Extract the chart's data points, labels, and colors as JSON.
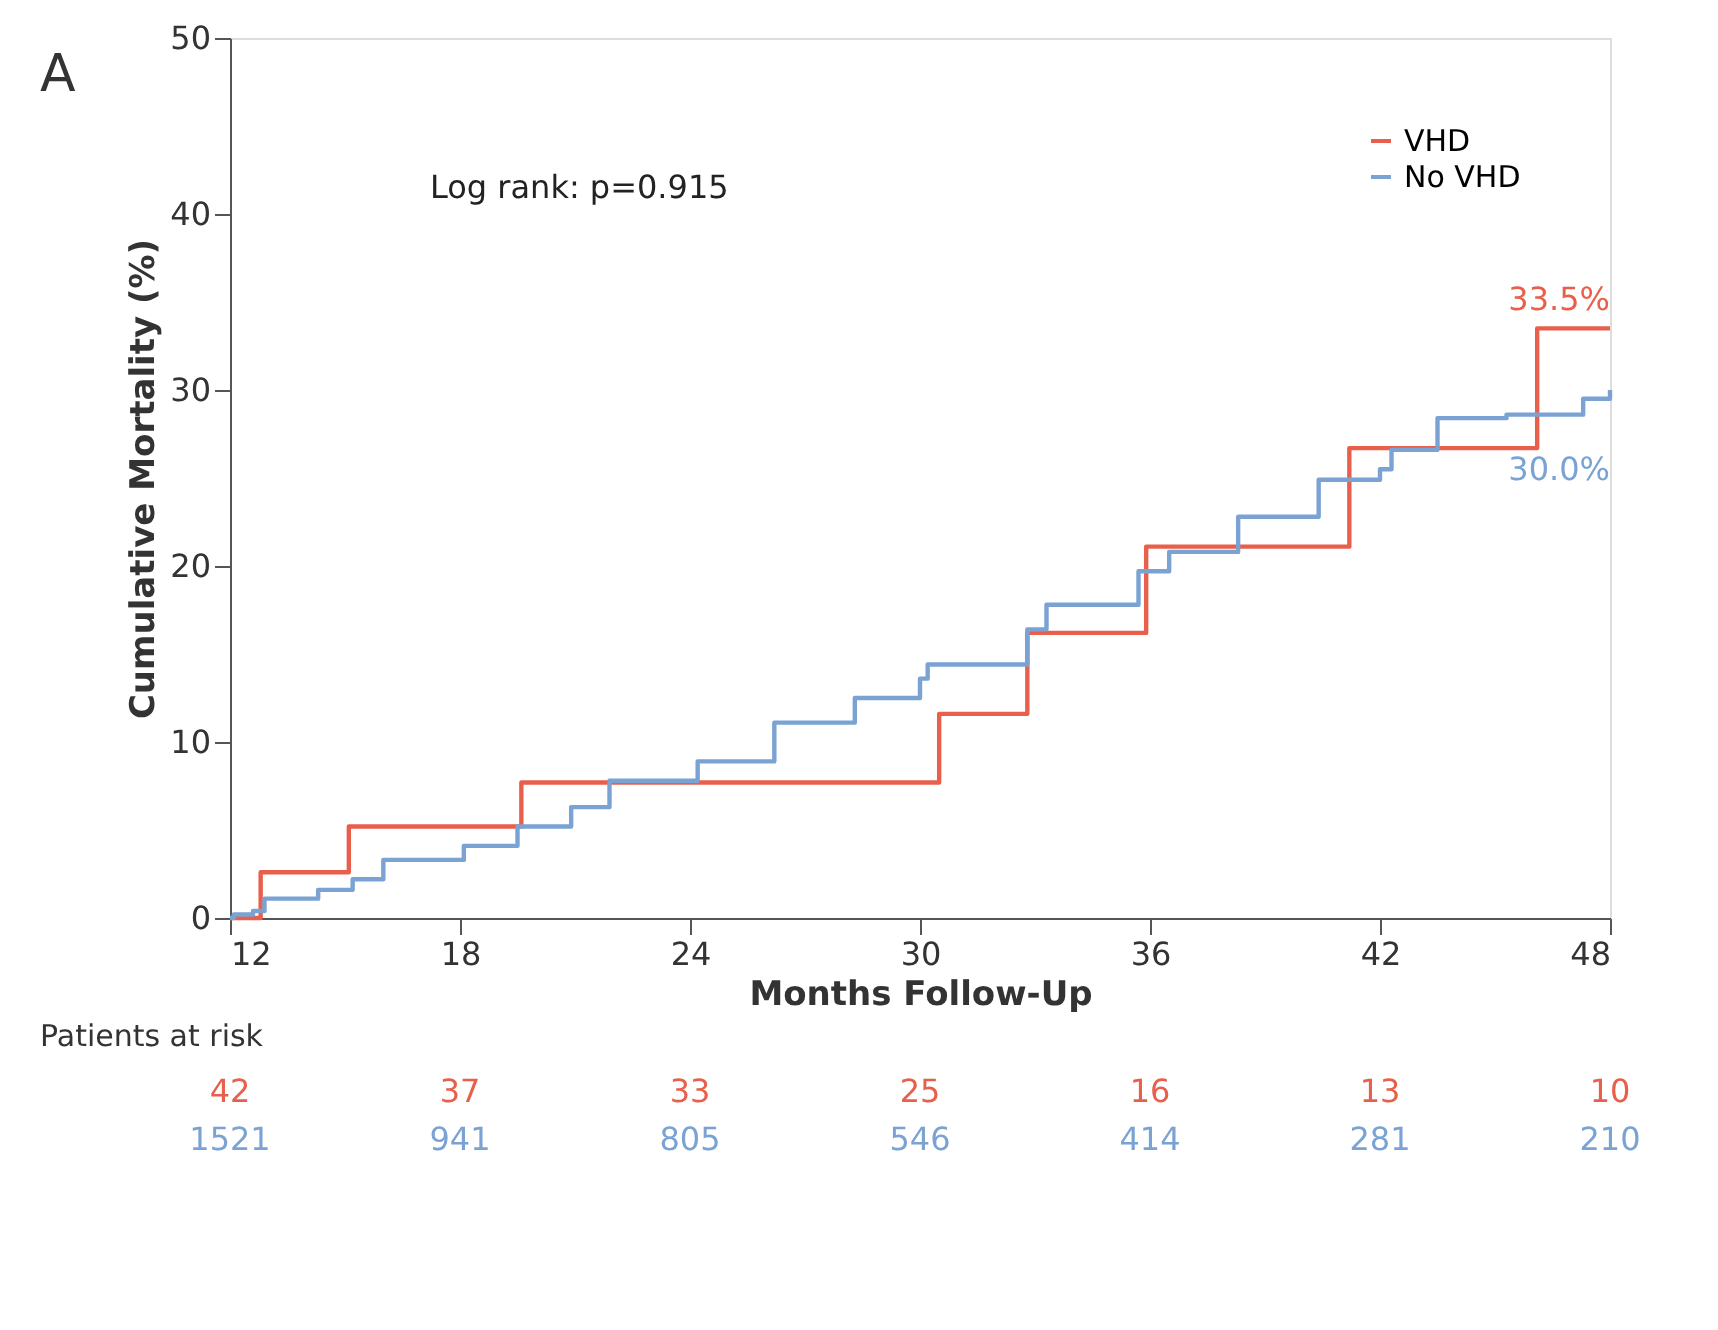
{
  "chart_data": {
    "type": "step",
    "xlabel": "Months Follow-Up",
    "ylabel": "Cumulative Mortality (%)",
    "xlim": [
      12,
      48
    ],
    "xticks": [
      12,
      18,
      24,
      30,
      36,
      42,
      48
    ],
    "ylim": [
      0,
      50
    ],
    "yticks": [
      0,
      10,
      20,
      30,
      40,
      50
    ],
    "grid": false,
    "legend": "top right",
    "line_style": "solid",
    "marker": "none",
    "series": [
      {
        "name": "VHD",
        "color": "#e8604c",
        "x": [
          12,
          12.8,
          15.1,
          19.6,
          30.5,
          32.8,
          35.9,
          41.2,
          46.1,
          48
        ],
        "values": [
          0,
          2.6,
          5.2,
          7.7,
          11.6,
          16.2,
          21.1,
          26.7,
          33.5,
          33.5
        ]
      },
      {
        "name": "No VHD",
        "color": "#7aa3d4",
        "x": [
          12,
          12.1,
          12.6,
          12.9,
          14.3,
          15.2,
          16.0,
          18.1,
          19.5,
          20.9,
          21.9,
          24.2,
          26.2,
          28.3,
          30.0,
          30.2,
          32.8,
          33.3,
          35.7,
          36.5,
          38.3,
          40.4,
          42.0,
          42.3,
          43.5,
          45.3,
          47.3,
          48
        ],
        "values": [
          0,
          0.2,
          0.4,
          1.1,
          1.6,
          2.2,
          3.3,
          4.1,
          5.2,
          6.3,
          7.8,
          8.9,
          11.1,
          12.5,
          13.6,
          14.4,
          16.4,
          17.8,
          19.7,
          20.8,
          22.8,
          24.9,
          25.5,
          26.6,
          28.4,
          28.6,
          29.5,
          30.0
        ]
      }
    ],
    "annotations": [
      "A",
      "Log rank: p=0.915",
      "Patients at risk",
      {
        "text": "33.5%",
        "x": 48,
        "y": 33.5
      },
      {
        "text": "30.0%",
        "x": 48,
        "y": 30.0
      },
      "42",
      "37",
      "33",
      "25",
      "16",
      "13",
      "10",
      "1521",
      "941",
      "805",
      "546",
      "414",
      "281",
      "210"
    ]
  }
}
